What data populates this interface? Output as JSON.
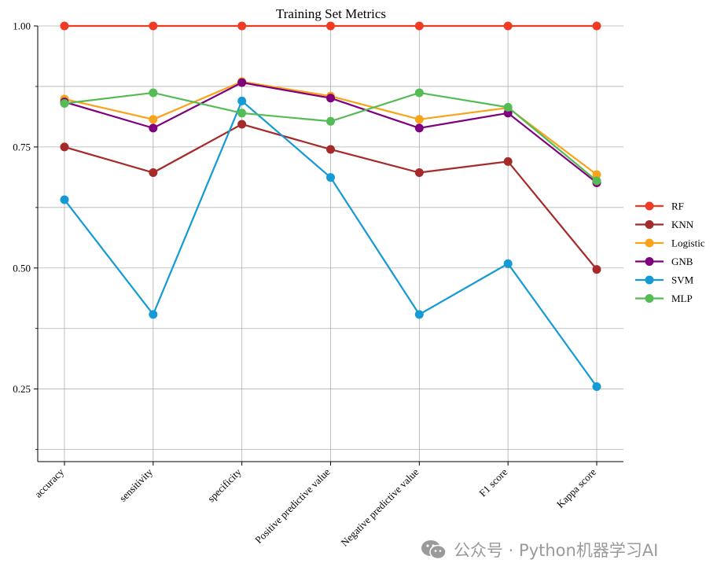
{
  "chart_data": {
    "type": "line",
    "title": "Training Set Metrics",
    "xlabel": "",
    "ylabel": "",
    "categories": [
      "accuracy",
      "sensitivity",
      "specificity",
      "Positive predictive value",
      "Negative predictive value",
      "F1 score",
      "Kappa score"
    ],
    "ylim": [
      0.1,
      1.0
    ],
    "yticks": [
      0.25,
      0.5,
      0.75,
      1.0
    ],
    "ytick_labels": [
      "0.25",
      "0.50",
      "0.75",
      "1.00"
    ],
    "grid": true,
    "legend_position": "right",
    "series": [
      {
        "name": "RF",
        "color": "#f03a24",
        "values": [
          1.0,
          1.0,
          1.0,
          1.0,
          1.0,
          1.0,
          1.0
        ]
      },
      {
        "name": "KNN",
        "color": "#a52a2a",
        "values": [
          0.75,
          0.697,
          0.797,
          0.745,
          0.697,
          0.72,
          0.497
        ]
      },
      {
        "name": "Logistic",
        "color": "#f9a31b",
        "values": [
          0.849,
          0.807,
          0.885,
          0.855,
          0.807,
          0.831,
          0.693
        ]
      },
      {
        "name": "GNB",
        "color": "#7e007e",
        "values": [
          0.843,
          0.789,
          0.883,
          0.851,
          0.789,
          0.82,
          0.676
        ]
      },
      {
        "name": "SVM",
        "color": "#149ad4",
        "values": [
          0.641,
          0.404,
          0.845,
          0.687,
          0.404,
          0.509,
          0.255
        ]
      },
      {
        "name": "MLP",
        "color": "#55bb55",
        "values": [
          0.84,
          0.862,
          0.82,
          0.803,
          0.862,
          0.832,
          0.68
        ]
      }
    ]
  },
  "watermark": {
    "text": "公众号 · Python机器学习AI",
    "icon": "wechat-icon"
  }
}
